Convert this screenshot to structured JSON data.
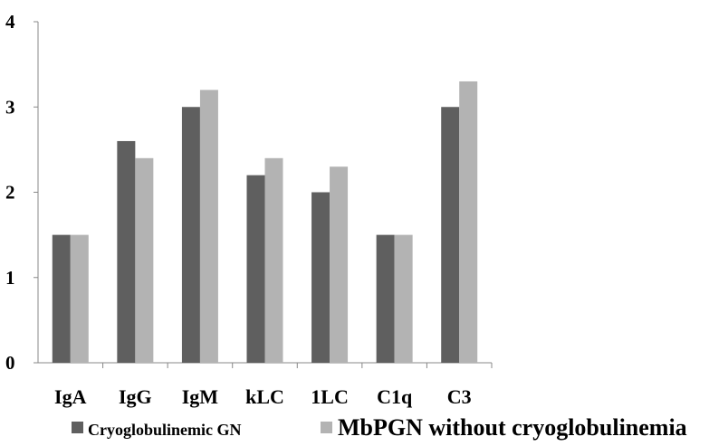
{
  "chart_data": {
    "type": "bar",
    "categories": [
      "IgA",
      "IgG",
      "IgM",
      "kLC",
      "1LC",
      "C1q",
      "C3"
    ],
    "series": [
      {
        "name": "Cryoglobulinemic GN",
        "values": [
          1.5,
          2.6,
          3.0,
          2.2,
          2.0,
          1.5,
          3.0
        ],
        "color": "#5f5f5f"
      },
      {
        "name": "MbPGN without cryoglobulinemia",
        "values": [
          1.5,
          2.4,
          3.2,
          2.4,
          2.3,
          1.5,
          3.3
        ],
        "color": "#b3b3b3"
      }
    ],
    "y_ticks": [
      "0",
      "1",
      "2",
      "3",
      "4"
    ],
    "ylim": [
      0,
      4
    ],
    "grid": false,
    "legend_position": "bottom"
  }
}
